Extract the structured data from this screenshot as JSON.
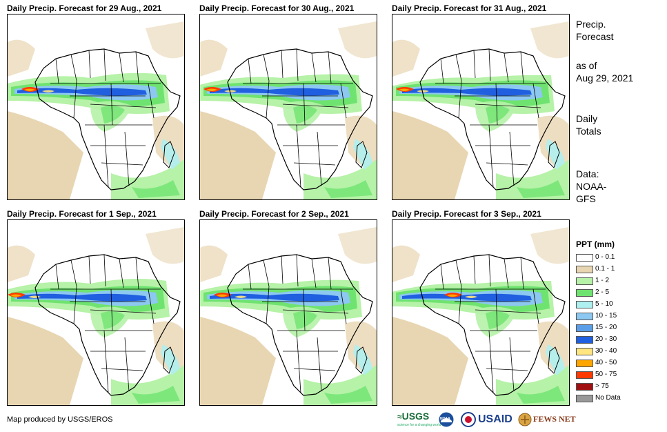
{
  "panels": [
    {
      "title": "Daily Precip. Forecast for 29 Aug., 2021"
    },
    {
      "title": "Daily Precip. Forecast for 30 Aug., 2021"
    },
    {
      "title": "Daily Precip. Forecast for 31 Aug., 2021"
    },
    {
      "title": "Daily Precip. Forecast for 1 Sep., 2021"
    },
    {
      "title": "Daily Precip. Forecast for 2 Sep., 2021"
    },
    {
      "title": "Daily Precip. Forecast for 3 Sep., 2021"
    }
  ],
  "sidebar": {
    "heading_line1": "Precip.",
    "heading_line2": "Forecast",
    "asof_line1": "as of",
    "asof_line2": "Aug 29, 2021",
    "totals_line1": "Daily",
    "totals_line2": "Totals",
    "data_line1": "Data:",
    "data_line2": "NOAA-",
    "data_line3": "GFS"
  },
  "legend": {
    "title": "PPT (mm)",
    "items": [
      {
        "label": "0 - 0.1",
        "color": "#ffffff"
      },
      {
        "label": "0.1 - 1",
        "color": "#e8d6b2"
      },
      {
        "label": "1 - 2",
        "color": "#b6f2a8"
      },
      {
        "label": "2 - 5",
        "color": "#6fe36f"
      },
      {
        "label": "5 - 10",
        "color": "#aef0f0"
      },
      {
        "label": "10 - 15",
        "color": "#8cc8f0"
      },
      {
        "label": "15 - 20",
        "color": "#5a9ee8"
      },
      {
        "label": "20 - 30",
        "color": "#1f5fe0"
      },
      {
        "label": "30 - 40",
        "color": "#ffe680"
      },
      {
        "label": "40 - 50",
        "color": "#ffa500"
      },
      {
        "label": "50 - 75",
        "color": "#ff3a00"
      },
      {
        "label": "> 75",
        "color": "#a01010"
      },
      {
        "label": "No Data",
        "color": "#999999"
      }
    ]
  },
  "credit": "Map produced by USGS/EROS",
  "logos": {
    "usgs": "USGS",
    "usgs_tagline": "science for a changing world",
    "noaa": "NOAA",
    "usaid": "USAID",
    "fewsnet": "FEWS NET"
  }
}
